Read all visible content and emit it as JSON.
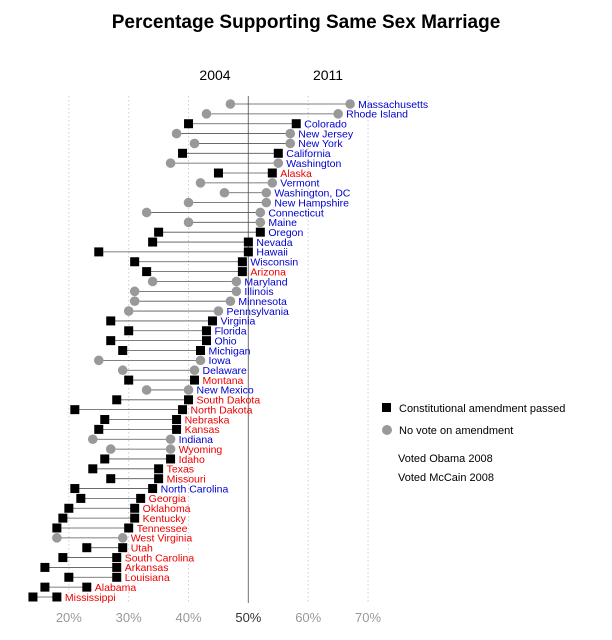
{
  "chart_data": {
    "type": "dot-range",
    "title": "Percentage Supporting Same Sex Marriage",
    "year_labels": [
      "2004",
      "2011"
    ],
    "x_ticks": [
      {
        "value": 20,
        "label": "20%"
      },
      {
        "value": 30,
        "label": "30%"
      },
      {
        "value": 40,
        "label": "40%"
      },
      {
        "value": 50,
        "label": "50%"
      },
      {
        "value": 60,
        "label": "60%"
      },
      {
        "value": 70,
        "label": "70%"
      }
    ],
    "xlim": [
      10.5,
      73.5
    ],
    "legend": {
      "placement": "right",
      "amendment_label": "Constitutional amendment passed",
      "no_vote_label": "No vote on amendment",
      "obama_label": "Voted Obama 2008",
      "mccain_label": "Voted McCain 2008"
    },
    "colors": {
      "obama": "#0000cc",
      "mccain": "#ee0000",
      "amendment": "#000000",
      "no_vote": "#999999",
      "connector": "#555555",
      "grid": "#cccccc"
    },
    "states": [
      {
        "name": "Massachusetts",
        "v2004": 47,
        "v2011": 67,
        "amendment": false,
        "vote": "obama"
      },
      {
        "name": "Rhode Island",
        "v2004": 43,
        "v2011": 65,
        "amendment": false,
        "vote": "obama"
      },
      {
        "name": "Colorado",
        "v2004": 40,
        "v2011": 58,
        "amendment": true,
        "vote": "obama"
      },
      {
        "name": "New Jersey",
        "v2004": 38,
        "v2011": 57,
        "amendment": false,
        "vote": "obama"
      },
      {
        "name": "New York",
        "v2004": 41,
        "v2011": 57,
        "amendment": false,
        "vote": "obama"
      },
      {
        "name": "California",
        "v2004": 39,
        "v2011": 55,
        "amendment": true,
        "vote": "obama"
      },
      {
        "name": "Washington",
        "v2004": 37,
        "v2011": 55,
        "amendment": false,
        "vote": "obama"
      },
      {
        "name": "Alaska",
        "v2004": 45,
        "v2011": 54,
        "amendment": true,
        "vote": "mccain"
      },
      {
        "name": "Vermont",
        "v2004": 42,
        "v2011": 54,
        "amendment": false,
        "vote": "obama"
      },
      {
        "name": "Washington, DC",
        "v2004": 46,
        "v2011": 53,
        "amendment": false,
        "vote": "obama"
      },
      {
        "name": "New Hampshire",
        "v2004": 40,
        "v2011": 53,
        "amendment": false,
        "vote": "obama"
      },
      {
        "name": "Connecticut",
        "v2004": 33,
        "v2011": 52,
        "amendment": false,
        "vote": "obama"
      },
      {
        "name": "Maine",
        "v2004": 40,
        "v2011": 52,
        "amendment": false,
        "vote": "obama"
      },
      {
        "name": "Oregon",
        "v2004": 35,
        "v2011": 52,
        "amendment": true,
        "vote": "obama"
      },
      {
        "name": "Nevada",
        "v2004": 34,
        "v2011": 50,
        "amendment": true,
        "vote": "obama"
      },
      {
        "name": "Hawaii",
        "v2004": 25,
        "v2011": 50,
        "amendment": true,
        "vote": "obama"
      },
      {
        "name": "Wisconsin",
        "v2004": 31,
        "v2011": 49,
        "amendment": true,
        "vote": "obama"
      },
      {
        "name": "Arizona",
        "v2004": 33,
        "v2011": 49,
        "amendment": true,
        "vote": "mccain"
      },
      {
        "name": "Maryland",
        "v2004": 34,
        "v2011": 48,
        "amendment": false,
        "vote": "obama"
      },
      {
        "name": "Illinois",
        "v2004": 31,
        "v2011": 48,
        "amendment": false,
        "vote": "obama"
      },
      {
        "name": "Minnesota",
        "v2004": 31,
        "v2011": 47,
        "amendment": false,
        "vote": "obama"
      },
      {
        "name": "Pennsylvania",
        "v2004": 30,
        "v2011": 45,
        "amendment": false,
        "vote": "obama"
      },
      {
        "name": "Virginia",
        "v2004": 27,
        "v2011": 44,
        "amendment": true,
        "vote": "obama"
      },
      {
        "name": "Florida",
        "v2004": 30,
        "v2011": 43,
        "amendment": true,
        "vote": "obama"
      },
      {
        "name": "Ohio",
        "v2004": 27,
        "v2011": 43,
        "amendment": true,
        "vote": "obama"
      },
      {
        "name": "Michigan",
        "v2004": 29,
        "v2011": 42,
        "amendment": true,
        "vote": "obama"
      },
      {
        "name": "Iowa",
        "v2004": 25,
        "v2011": 42,
        "amendment": false,
        "vote": "obama"
      },
      {
        "name": "Delaware",
        "v2004": 29,
        "v2011": 41,
        "amendment": false,
        "vote": "obama"
      },
      {
        "name": "Montana",
        "v2004": 30,
        "v2011": 41,
        "amendment": true,
        "vote": "mccain"
      },
      {
        "name": "New Mexico",
        "v2004": 33,
        "v2011": 40,
        "amendment": false,
        "vote": "obama"
      },
      {
        "name": "South Dakota",
        "v2004": 28,
        "v2011": 40,
        "amendment": true,
        "vote": "mccain"
      },
      {
        "name": "North Dakota",
        "v2004": 21,
        "v2011": 39,
        "amendment": true,
        "vote": "mccain"
      },
      {
        "name": "Nebraska",
        "v2004": 26,
        "v2011": 38,
        "amendment": true,
        "vote": "mccain"
      },
      {
        "name": "Kansas",
        "v2004": 25,
        "v2011": 38,
        "amendment": true,
        "vote": "mccain"
      },
      {
        "name": "Indiana",
        "v2004": 24,
        "v2011": 37,
        "amendment": false,
        "vote": "obama"
      },
      {
        "name": "Wyoming",
        "v2004": 27,
        "v2011": 37,
        "amendment": false,
        "vote": "mccain"
      },
      {
        "name": "Idaho",
        "v2004": 26,
        "v2011": 37,
        "amendment": true,
        "vote": "mccain"
      },
      {
        "name": "Texas",
        "v2004": 24,
        "v2011": 35,
        "amendment": true,
        "vote": "mccain"
      },
      {
        "name": "Missouri",
        "v2004": 27,
        "v2011": 35,
        "amendment": true,
        "vote": "mccain"
      },
      {
        "name": "North Carolina",
        "v2004": 21,
        "v2011": 34,
        "amendment": true,
        "vote": "obama"
      },
      {
        "name": "Georgia",
        "v2004": 22,
        "v2011": 32,
        "amendment": true,
        "vote": "mccain"
      },
      {
        "name": "Oklahoma",
        "v2004": 20,
        "v2011": 31,
        "amendment": true,
        "vote": "mccain"
      },
      {
        "name": "Kentucky",
        "v2004": 19,
        "v2011": 31,
        "amendment": true,
        "vote": "mccain"
      },
      {
        "name": "Tennessee",
        "v2004": 18,
        "v2011": 30,
        "amendment": true,
        "vote": "mccain"
      },
      {
        "name": "West Virginia",
        "v2004": 18,
        "v2011": 29,
        "amendment": false,
        "vote": "mccain"
      },
      {
        "name": "Utah",
        "v2004": 23,
        "v2011": 29,
        "amendment": true,
        "vote": "mccain"
      },
      {
        "name": "South Carolina",
        "v2004": 19,
        "v2011": 28,
        "amendment": true,
        "vote": "mccain"
      },
      {
        "name": "Arkansas",
        "v2004": 16,
        "v2011": 28,
        "amendment": true,
        "vote": "mccain"
      },
      {
        "name": "Louisiana",
        "v2004": 20,
        "v2011": 28,
        "amendment": true,
        "vote": "mccain"
      },
      {
        "name": "Alabama",
        "v2004": 16,
        "v2011": 23,
        "amendment": true,
        "vote": "mccain"
      },
      {
        "name": "Mississippi",
        "v2004": 14,
        "v2011": 18,
        "amendment": true,
        "vote": "mccain"
      }
    ]
  }
}
